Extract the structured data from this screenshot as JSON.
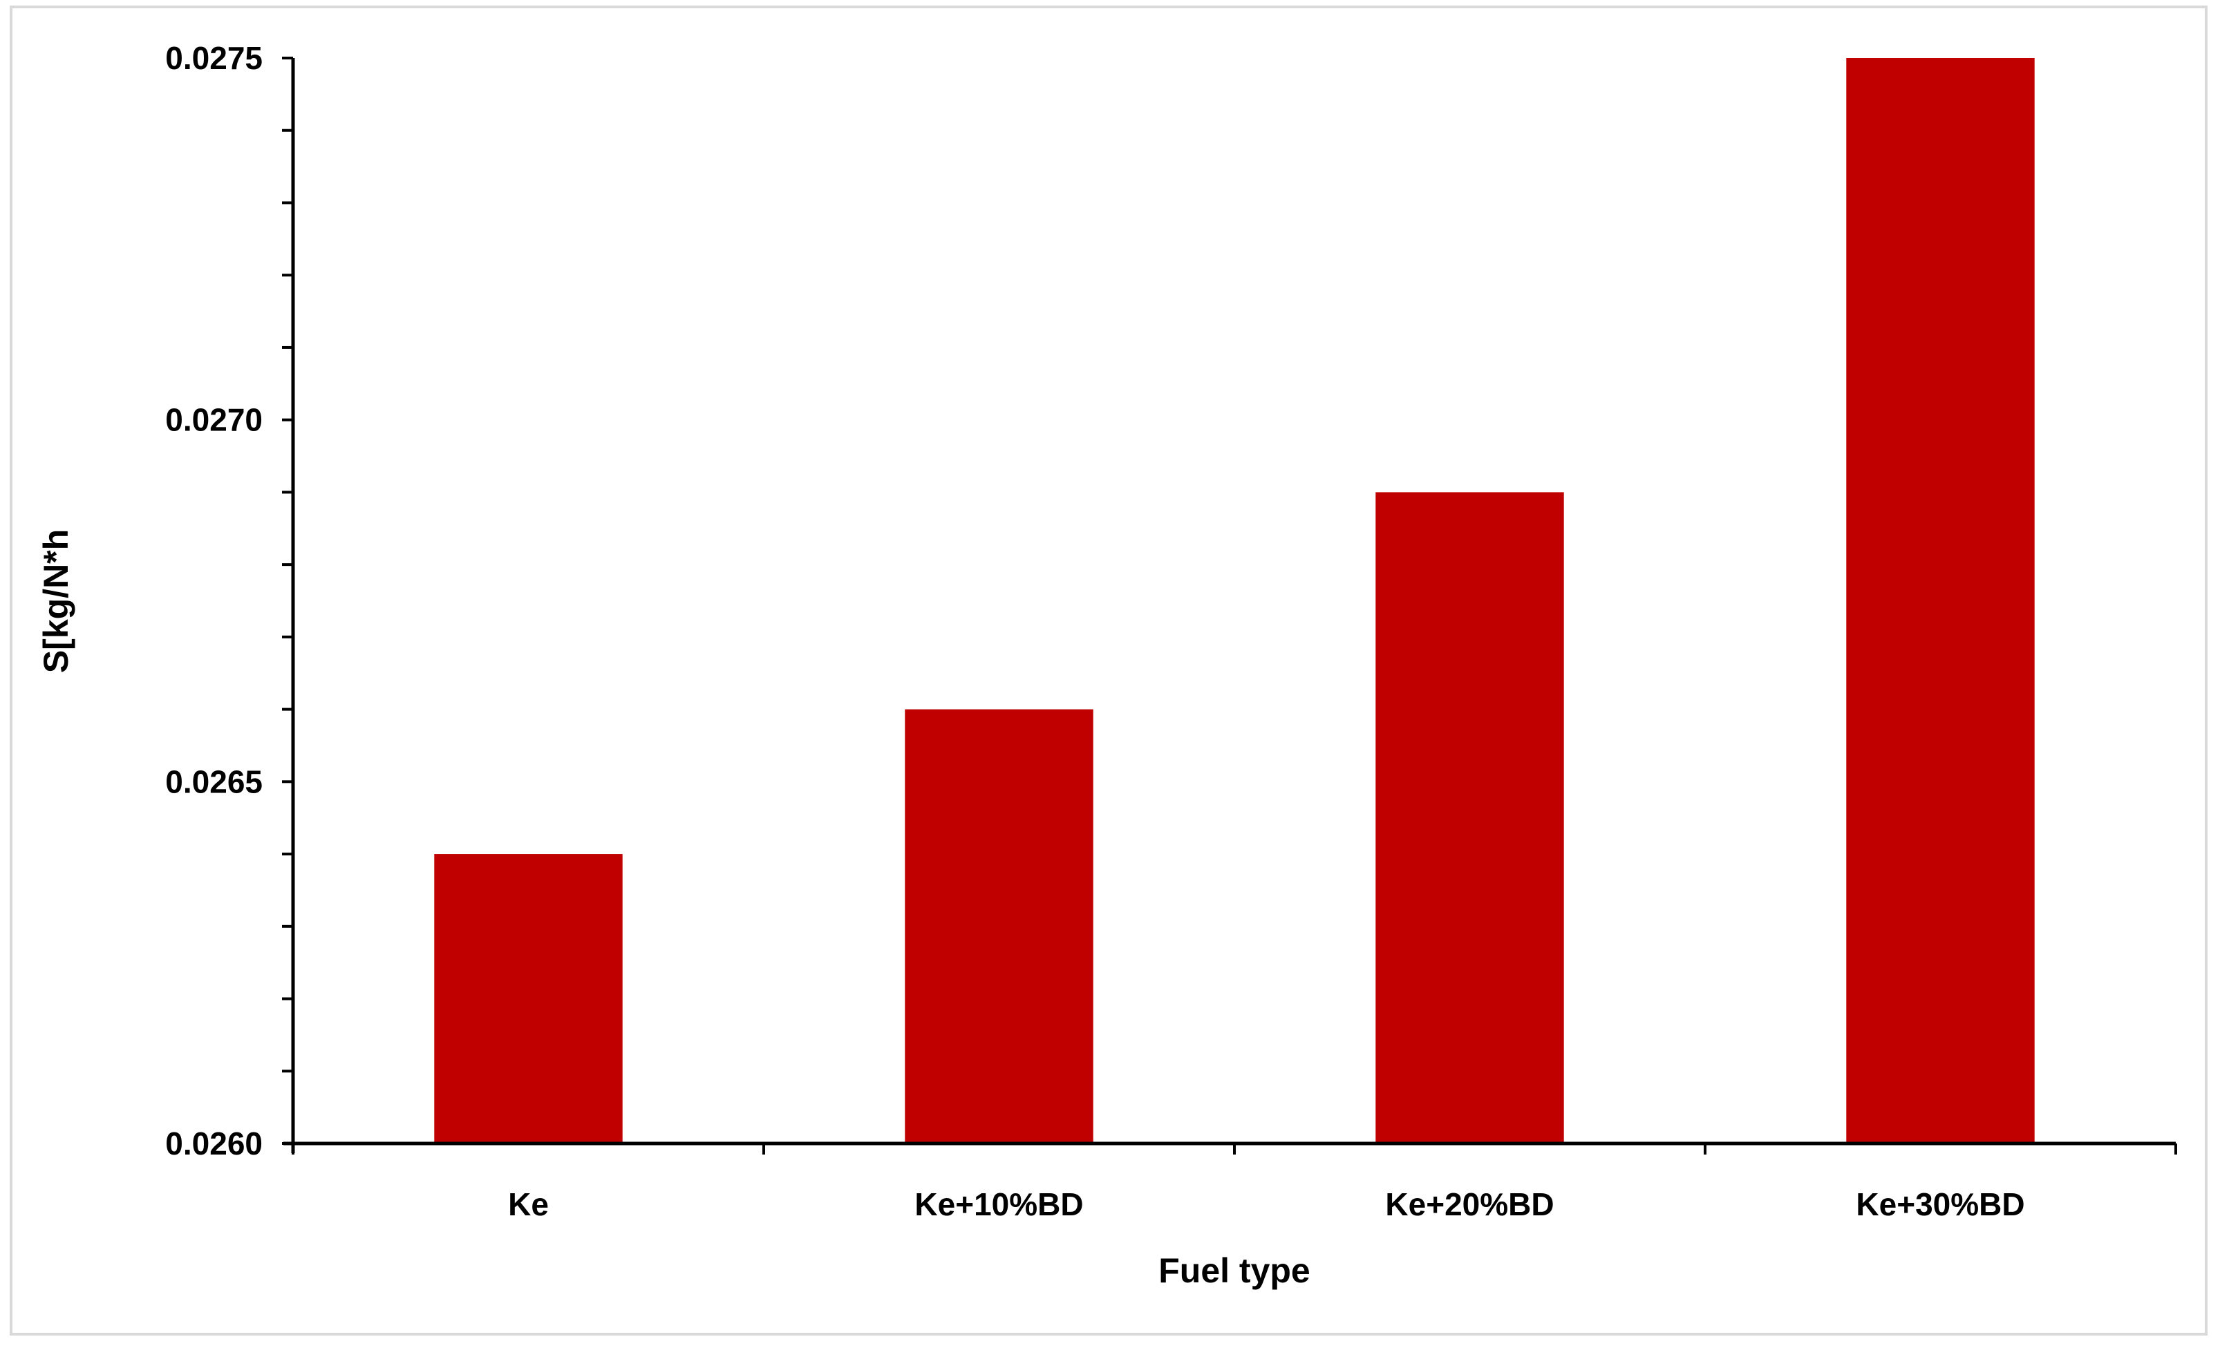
{
  "chart_data": {
    "type": "bar",
    "title": "",
    "xlabel": "Fuel type",
    "ylabel": "S[kg/N*h",
    "categories": [
      "Ke",
      "Ke+10%BD",
      "Ke+20%BD",
      "Ke+30%BD"
    ],
    "values": [
      0.0264,
      0.0266,
      0.0269,
      0.0275
    ],
    "ylim": [
      0.026,
      0.0275
    ],
    "yticks": [
      "0.0260",
      "0.0265",
      "0.0270",
      "0.0275"
    ],
    "minor_tick_step": 0.0001,
    "grid": false,
    "legend": "none",
    "bar_color": "#C00000"
  }
}
